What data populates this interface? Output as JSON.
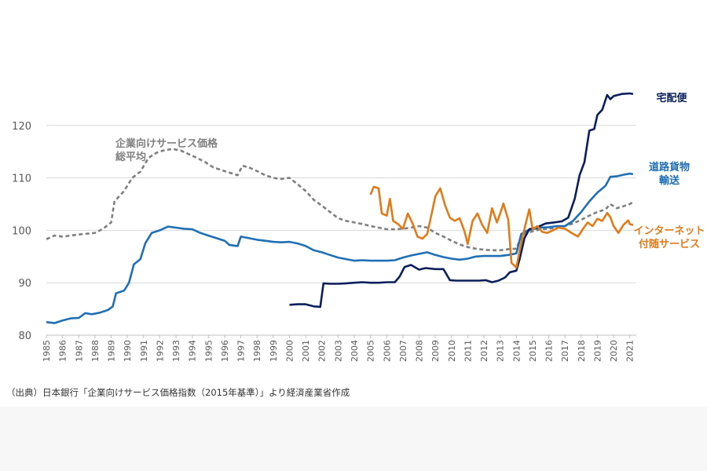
{
  "chart_data": {
    "type": "line",
    "ylim": [
      80,
      127
    ],
    "yticks": [
      80,
      90,
      100,
      110,
      120
    ],
    "xlim": [
      1985,
      2021.4
    ],
    "xtick_labels": [
      "1985",
      "1986",
      "1987",
      "1988",
      "1989",
      "1990",
      "1991",
      "1992",
      "1993",
      "1994",
      "1995",
      "1996",
      "1997",
      "1998",
      "1999",
      "2000",
      "2001",
      "2002",
      "2003",
      "2004",
      "2005",
      "2006",
      "2007",
      "2008",
      "2009",
      "2010",
      "2011",
      "2012",
      "2013",
      "2014",
      "2015",
      "2016",
      "2017",
      "2018",
      "2019",
      "2020",
      "2021"
    ],
    "grid": "horizontal",
    "series": [
      {
        "name": "企業向けサービス価格総平均",
        "label_lines": [
          "企業向けサービス価格",
          "総平均"
        ],
        "color": "#7f7f7f",
        "dash": true,
        "points": [
          [
            1985,
            98.3
          ],
          [
            1985.5,
            99.0
          ],
          [
            1986,
            98.8
          ],
          [
            1987,
            99.2
          ],
          [
            1988,
            99.5
          ],
          [
            1988.5,
            100.3
          ],
          [
            1989,
            101.5
          ],
          [
            1989.2,
            105.5
          ],
          [
            1989.8,
            107.5
          ],
          [
            1990.3,
            110.0
          ],
          [
            1990.8,
            111.2
          ],
          [
            1991.3,
            113.8
          ],
          [
            1991.8,
            114.8
          ],
          [
            1992.3,
            115.3
          ],
          [
            1992.8,
            115.5
          ],
          [
            1993.3,
            115.2
          ],
          [
            1993.8,
            114.5
          ],
          [
            1994.3,
            113.8
          ],
          [
            1994.8,
            113.0
          ],
          [
            1995.3,
            112.0
          ],
          [
            1995.8,
            111.5
          ],
          [
            1996.3,
            111.0
          ],
          [
            1996.8,
            110.5
          ],
          [
            1997.1,
            112.3
          ],
          [
            1997.5,
            112.0
          ],
          [
            1998,
            111.3
          ],
          [
            1998.5,
            110.5
          ],
          [
            1999,
            110.0
          ],
          [
            1999.5,
            109.8
          ],
          [
            2000,
            110.0
          ],
          [
            2000.5,
            108.8
          ],
          [
            2001,
            107.5
          ],
          [
            2001.5,
            105.8
          ],
          [
            2002,
            104.7
          ],
          [
            2002.5,
            103.5
          ],
          [
            2003,
            102.3
          ],
          [
            2003.5,
            101.8
          ],
          [
            2004,
            101.5
          ],
          [
            2004.5,
            101.2
          ],
          [
            2005,
            100.8
          ],
          [
            2005.5,
            100.5
          ],
          [
            2006,
            100.2
          ],
          [
            2006.5,
            100.2
          ],
          [
            2007,
            100.3
          ],
          [
            2007.5,
            100.5
          ],
          [
            2008,
            100.8
          ],
          [
            2008.5,
            100.5
          ],
          [
            2009,
            99.5
          ],
          [
            2009.5,
            98.8
          ],
          [
            2010,
            98.0
          ],
          [
            2010.5,
            97.3
          ],
          [
            2011,
            96.8
          ],
          [
            2011.5,
            96.5
          ],
          [
            2012,
            96.3
          ],
          [
            2012.5,
            96.2
          ],
          [
            2013,
            96.2
          ],
          [
            2013.5,
            96.4
          ],
          [
            2014,
            96.5
          ],
          [
            2014.3,
            98.8
          ],
          [
            2014.6,
            99.4
          ],
          [
            2015,
            99.8
          ],
          [
            2015.5,
            100.2
          ],
          [
            2016,
            100.3
          ],
          [
            2016.5,
            100.5
          ],
          [
            2017,
            100.8
          ],
          [
            2017.5,
            101.3
          ],
          [
            2018,
            102.0
          ],
          [
            2018.5,
            102.8
          ],
          [
            2019,
            103.5
          ],
          [
            2019.5,
            104.0
          ],
          [
            2019.8,
            105.0
          ],
          [
            2020.2,
            104.2
          ],
          [
            2020.6,
            104.6
          ],
          [
            2021,
            105.0
          ],
          [
            2021.2,
            105.4
          ]
        ]
      },
      {
        "name": "道路貨物輸送",
        "label_lines": [
          "道路貨物",
          "輸送"
        ],
        "color": "#1f6fb5",
        "dash": false,
        "points": [
          [
            1985,
            82.5
          ],
          [
            1985.5,
            82.3
          ],
          [
            1986,
            82.8
          ],
          [
            1986.5,
            83.2
          ],
          [
            1987,
            83.3
          ],
          [
            1987.4,
            84.2
          ],
          [
            1987.8,
            84.0
          ],
          [
            1988.3,
            84.3
          ],
          [
            1988.8,
            84.8
          ],
          [
            1989.1,
            85.5
          ],
          [
            1989.3,
            88.0
          ],
          [
            1989.8,
            88.5
          ],
          [
            1990.1,
            90.0
          ],
          [
            1990.4,
            93.5
          ],
          [
            1990.8,
            94.5
          ],
          [
            1991.1,
            97.5
          ],
          [
            1991.5,
            99.5
          ],
          [
            1992,
            100.0
          ],
          [
            1992.5,
            100.7
          ],
          [
            1993,
            100.5
          ],
          [
            1993.5,
            100.3
          ],
          [
            1994,
            100.2
          ],
          [
            1994.5,
            99.5
          ],
          [
            1995,
            99.0
          ],
          [
            1995.5,
            98.5
          ],
          [
            1996,
            98.0
          ],
          [
            1996.3,
            97.2
          ],
          [
            1996.8,
            97.0
          ],
          [
            1997.0,
            98.8
          ],
          [
            1997.5,
            98.5
          ],
          [
            1998,
            98.2
          ],
          [
            1998.5,
            98.0
          ],
          [
            1999,
            97.8
          ],
          [
            1999.5,
            97.7
          ],
          [
            2000,
            97.8
          ],
          [
            2000.5,
            97.5
          ],
          [
            2001,
            97.0
          ],
          [
            2001.5,
            96.2
          ],
          [
            2002,
            95.8
          ],
          [
            2002.5,
            95.3
          ],
          [
            2003,
            94.8
          ],
          [
            2003.5,
            94.5
          ],
          [
            2004,
            94.2
          ],
          [
            2004.5,
            94.3
          ],
          [
            2005,
            94.2
          ],
          [
            2005.5,
            94.2
          ],
          [
            2006,
            94.2
          ],
          [
            2006.5,
            94.3
          ],
          [
            2007,
            94.8
          ],
          [
            2007.5,
            95.2
          ],
          [
            2008,
            95.5
          ],
          [
            2008.5,
            95.8
          ],
          [
            2009,
            95.3
          ],
          [
            2009.5,
            94.9
          ],
          [
            2010,
            94.6
          ],
          [
            2010.5,
            94.4
          ],
          [
            2011,
            94.6
          ],
          [
            2011.5,
            95.0
          ],
          [
            2012,
            95.1
          ],
          [
            2012.5,
            95.1
          ],
          [
            2013,
            95.1
          ],
          [
            2013.5,
            95.3
          ],
          [
            2014,
            95.6
          ],
          [
            2014.3,
            99.3
          ],
          [
            2014.7,
            100.0
          ],
          [
            2015,
            100.2
          ],
          [
            2015.5,
            100.5
          ],
          [
            2016,
            100.6
          ],
          [
            2016.5,
            100.8
          ],
          [
            2017,
            100.8
          ],
          [
            2017.5,
            101.8
          ],
          [
            2018,
            103.5
          ],
          [
            2018.5,
            105.5
          ],
          [
            2019,
            107.2
          ],
          [
            2019.5,
            108.5
          ],
          [
            2019.8,
            110.2
          ],
          [
            2020.2,
            110.3
          ],
          [
            2020.6,
            110.6
          ],
          [
            2021,
            110.8
          ],
          [
            2021.2,
            110.7
          ]
        ]
      },
      {
        "name": "宅配便",
        "label_lines": [
          "宅配便"
        ],
        "color": "#0a1f5c",
        "dash": false,
        "points": [
          [
            2000,
            85.8
          ],
          [
            2000.5,
            85.9
          ],
          [
            2001,
            85.9
          ],
          [
            2001.5,
            85.5
          ],
          [
            2001.9,
            85.4
          ],
          [
            2002.1,
            89.9
          ],
          [
            2002.5,
            89.8
          ],
          [
            2003,
            89.8
          ],
          [
            2003.5,
            89.9
          ],
          [
            2004,
            90.0
          ],
          [
            2004.5,
            90.1
          ],
          [
            2005,
            90.0
          ],
          [
            2005.5,
            90.0
          ],
          [
            2006,
            90.1
          ],
          [
            2006.5,
            90.1
          ],
          [
            2006.8,
            91.2
          ],
          [
            2007.1,
            93.0
          ],
          [
            2007.5,
            93.4
          ],
          [
            2008,
            92.5
          ],
          [
            2008.4,
            92.8
          ],
          [
            2009,
            92.6
          ],
          [
            2009.5,
            92.6
          ],
          [
            2009.9,
            90.5
          ],
          [
            2010.3,
            90.4
          ],
          [
            2010.8,
            90.4
          ],
          [
            2011.2,
            90.4
          ],
          [
            2011.7,
            90.4
          ],
          [
            2012.1,
            90.5
          ],
          [
            2012.5,
            90.1
          ],
          [
            2012.9,
            90.4
          ],
          [
            2013.3,
            91.0
          ],
          [
            2013.6,
            92.0
          ],
          [
            2014,
            92.3
          ],
          [
            2014.2,
            94.5
          ],
          [
            2014.5,
            98.5
          ],
          [
            2014.8,
            100.2
          ],
          [
            2015.3,
            100.6
          ],
          [
            2015.8,
            101.3
          ],
          [
            2016.3,
            101.5
          ],
          [
            2016.8,
            101.7
          ],
          [
            2017.2,
            102.4
          ],
          [
            2017.6,
            106.0
          ],
          [
            2017.9,
            110.5
          ],
          [
            2018.2,
            113.0
          ],
          [
            2018.5,
            119.0
          ],
          [
            2018.8,
            119.3
          ],
          [
            2019.0,
            122.0
          ],
          [
            2019.3,
            123.0
          ],
          [
            2019.6,
            125.8
          ],
          [
            2019.8,
            125.0
          ],
          [
            2020.0,
            125.6
          ],
          [
            2020.5,
            126.0
          ],
          [
            2021,
            126.1
          ],
          [
            2021.2,
            126.0
          ]
        ]
      },
      {
        "name": "インターネット付随サービス",
        "label_lines": [
          "インターネット",
          "付随サービス"
        ],
        "color": "#e07b1a",
        "dash": false,
        "points": [
          [
            2005,
            106.8
          ],
          [
            2005.2,
            108.3
          ],
          [
            2005.5,
            108.0
          ],
          [
            2005.7,
            103.2
          ],
          [
            2006,
            102.8
          ],
          [
            2006.2,
            106.0
          ],
          [
            2006.4,
            101.8
          ],
          [
            2006.7,
            101.2
          ],
          [
            2007,
            100.3
          ],
          [
            2007.3,
            103.2
          ],
          [
            2007.6,
            101.3
          ],
          [
            2007.9,
            98.8
          ],
          [
            2008.2,
            98.4
          ],
          [
            2008.5,
            99.3
          ],
          [
            2008.8,
            103.5
          ],
          [
            2009.0,
            106.5
          ],
          [
            2009.3,
            108.0
          ],
          [
            2009.6,
            104.8
          ],
          [
            2009.9,
            102.4
          ],
          [
            2010.2,
            101.8
          ],
          [
            2010.5,
            102.3
          ],
          [
            2010.8,
            99.8
          ],
          [
            2011.0,
            97.4
          ],
          [
            2011.3,
            101.8
          ],
          [
            2011.6,
            103.2
          ],
          [
            2011.9,
            101.0
          ],
          [
            2012.2,
            99.5
          ],
          [
            2012.5,
            104.2
          ],
          [
            2012.8,
            101.5
          ],
          [
            2013.0,
            103.2
          ],
          [
            2013.2,
            105.1
          ],
          [
            2013.5,
            102.0
          ],
          [
            2013.7,
            93.8
          ],
          [
            2014.0,
            92.9
          ],
          [
            2014.3,
            97.6
          ],
          [
            2014.6,
            101.6
          ],
          [
            2014.8,
            104.0
          ],
          [
            2015.0,
            100.2
          ],
          [
            2015.3,
            100.8
          ],
          [
            2015.6,
            99.7
          ],
          [
            2015.9,
            99.5
          ],
          [
            2016.2,
            99.9
          ],
          [
            2016.6,
            100.5
          ],
          [
            2017.0,
            100.3
          ],
          [
            2017.4,
            99.5
          ],
          [
            2017.8,
            98.8
          ],
          [
            2018.1,
            100.2
          ],
          [
            2018.4,
            101.5
          ],
          [
            2018.7,
            100.8
          ],
          [
            2019.0,
            102.2
          ],
          [
            2019.3,
            101.8
          ],
          [
            2019.6,
            103.3
          ],
          [
            2019.8,
            102.5
          ],
          [
            2020.0,
            100.8
          ],
          [
            2020.3,
            99.5
          ],
          [
            2020.6,
            101.0
          ],
          [
            2020.9,
            101.9
          ],
          [
            2021.0,
            101.2
          ],
          [
            2021.2,
            101.0
          ]
        ]
      }
    ]
  },
  "source_note": "（出典）日本銀行「企業向けサービス価格指数（2015年基準）」より経済産業省作成"
}
